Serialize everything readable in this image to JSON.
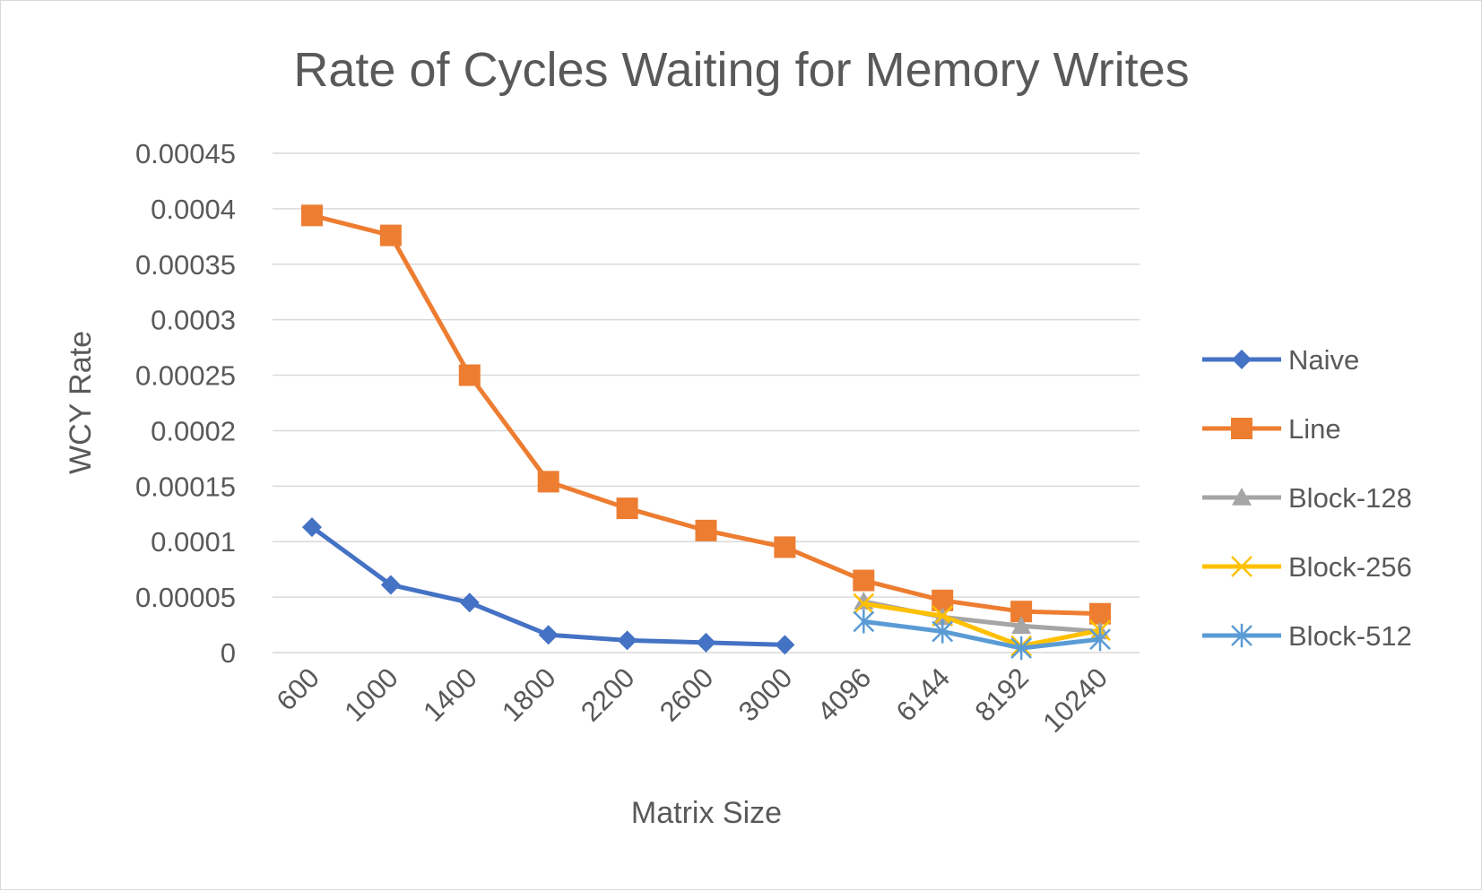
{
  "chart_data": {
    "type": "line",
    "title": "Rate of Cycles Waiting for Memory Writes",
    "xlabel": "Matrix Size",
    "ylabel": "WCY Rate",
    "categories": [
      "600",
      "1000",
      "1400",
      "1800",
      "2200",
      "2600",
      "3000",
      "4096",
      "6144",
      "8192",
      "10240"
    ],
    "ylim": [
      0,
      0.00045
    ],
    "yticks": [
      "0",
      "0.00005",
      "0.0001",
      "0.00015",
      "0.0002",
      "0.00025",
      "0.0003",
      "0.00035",
      "0.0004",
      "0.00045"
    ],
    "grid": true,
    "legend_position": "right",
    "series": [
      {
        "name": "Naive",
        "color": "#4472c4",
        "marker": "diamond",
        "values": [
          0.000113,
          6.1e-05,
          4.5e-05,
          1.6e-05,
          1.1e-05,
          9e-06,
          7e-06,
          null,
          null,
          null,
          null
        ]
      },
      {
        "name": "Line",
        "color": "#ed7d31",
        "marker": "square",
        "values": [
          0.000394,
          0.000376,
          0.00025,
          0.000154,
          0.00013,
          0.00011,
          9.5e-05,
          6.5e-05,
          4.7e-05,
          3.7e-05,
          3.5e-05
        ]
      },
      {
        "name": "Block-128",
        "color": "#a5a5a5",
        "marker": "triangle",
        "values": [
          null,
          null,
          null,
          null,
          null,
          null,
          null,
          4.6e-05,
          3.2e-05,
          2.4e-05,
          1.9e-05
        ]
      },
      {
        "name": "Block-256",
        "color": "#ffc000",
        "marker": "x",
        "values": [
          null,
          null,
          null,
          null,
          null,
          null,
          null,
          4.4e-05,
          3.3e-05,
          6e-06,
          2e-05
        ]
      },
      {
        "name": "Block-512",
        "color": "#5b9bd5",
        "marker": "star",
        "values": [
          null,
          null,
          null,
          null,
          null,
          null,
          null,
          2.8e-05,
          1.9e-05,
          4e-06,
          1.2e-05
        ]
      }
    ]
  }
}
